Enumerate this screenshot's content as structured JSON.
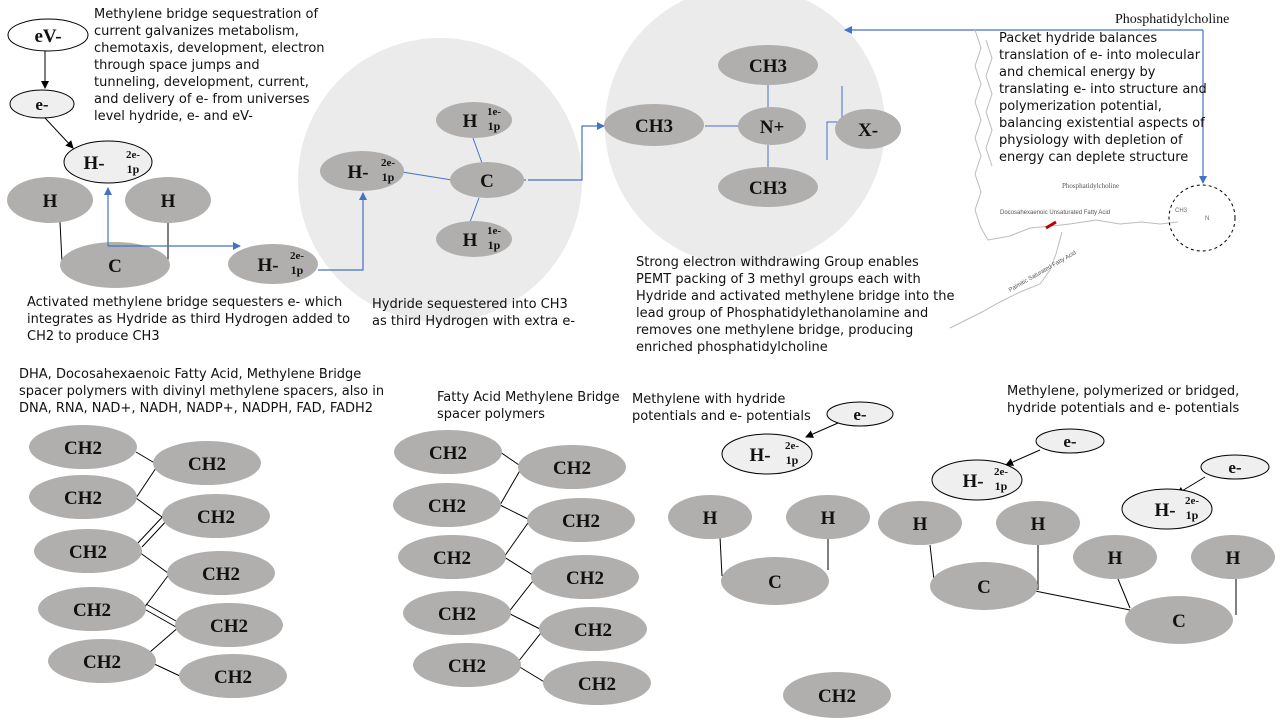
{
  "colors": {
    "node_fill": "#b1afae",
    "light_node_fill": "#efefef",
    "bg_circle": "#ebebeb",
    "arrow": "#4472c4",
    "line": "#000000"
  },
  "labels": {
    "ev": "eV-",
    "e": "e-",
    "hydride_main": "H-",
    "sup_2e": "2e-",
    "sub_1p": "1p",
    "sup_1e": "1e-",
    "h": "H",
    "c": "C",
    "ch3": "CH3",
    "ch2": "CH2",
    "n_plus": "N+",
    "x_minus": "X-"
  },
  "title_phosphatidylcholine": "Phosphatidylcholine",
  "notes": {
    "methylene_bridge": "Methylene bridge sequestration of\ncurrent galvanizes metabolism,\nchemotaxis, development,  electron\nthrough space jumps and\ntunneling, development, current,\nand delivery of e- from universes\nlevel hydride, e- and eV-",
    "activated": "Activated methylene bridge sequesters e- which\nintegrates as Hydride as third Hydrogen added to\nCH2 to produce CH3",
    "hydride_sequestered": "Hydride sequestered into CH3\nas third Hydrogen with extra e-",
    "strong_electron": "Strong electron withdrawing Group enables\nPEMT packing of 3 methyl groups each with\nHydride and activated methylene bridge into the\nlead group of  Phosphatidylethanolamine and\nremoves one methylene bridge,  producing\nenriched phosphatidylcholine",
    "packet_hydride": "Packet hydride balances\ntranslation of e- into molecular\nand chemical energy by\ntranslating e- into structure and\npolymerization potential,\nbalancing existential aspects of\nphysiology with depletion of\nenergy can deplete structure",
    "dha": "DHA, Docosahexaenoic Fatty Acid, Methylene Bridge\nspacer polymers with divinyl methylene spacers, also in\nDNA, RNA, NAD+, NADH, NADP+, NADPH, FAD, FADH2",
    "fatty_acid": "Fatty Acid Methylene Bridge\nspacer polymers",
    "methylene_hydride": "Methylene with hydride\npotentials and e- potentials",
    "methylene_polymerized": "Methylene, polymerized or bridged,\nhydride potentials and e- potentials"
  },
  "inset_labels": {
    "inner_title": "Phosphatidylcholine",
    "dha_label": "Docosahexaenoic\nUnsaturated Fatty Acid",
    "palmitic_label": "Palmitic Saturated\nFatty Acid",
    "ch3_small": "CH3",
    "n_small": "N"
  }
}
